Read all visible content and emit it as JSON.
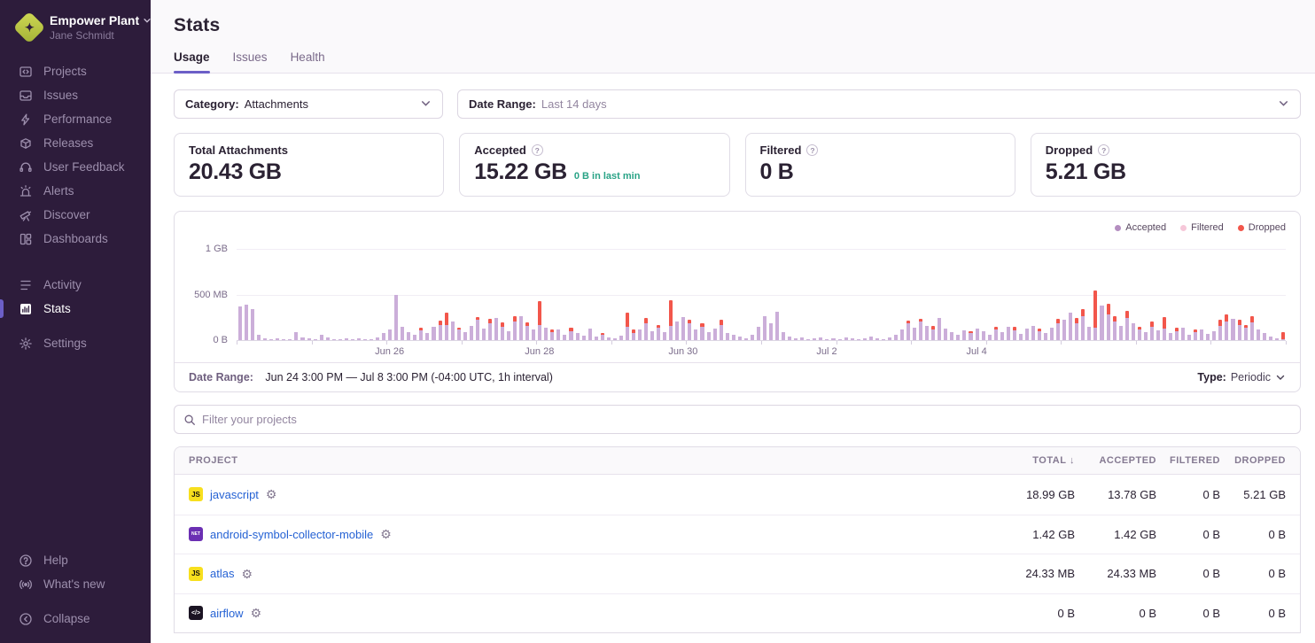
{
  "colors": {
    "accent": "#6c5fc7",
    "sidebar_bg": "#2d1c3b",
    "accepted": "#cbaed9",
    "filtered": "#f6c7d9",
    "dropped": "#f2564b",
    "link_blue": "#2562d4",
    "teal": "#29a386"
  },
  "sidebar": {
    "org_name": "Empower Plant",
    "user_name": "Jane Schmidt",
    "primary_items": [
      {
        "label": "Projects",
        "icon": "projects-icon"
      },
      {
        "label": "Issues",
        "icon": "issues-icon"
      },
      {
        "label": "Performance",
        "icon": "performance-icon"
      },
      {
        "label": "Releases",
        "icon": "releases-icon"
      },
      {
        "label": "User Feedback",
        "icon": "user-feedback-icon"
      },
      {
        "label": "Alerts",
        "icon": "alerts-icon"
      },
      {
        "label": "Discover",
        "icon": "discover-icon"
      },
      {
        "label": "Dashboards",
        "icon": "dashboards-icon"
      }
    ],
    "secondary_items": [
      {
        "label": "Activity",
        "icon": "activity-icon"
      },
      {
        "label": "Stats",
        "icon": "stats-icon",
        "active": true
      }
    ],
    "settings_items": [
      {
        "label": "Settings",
        "icon": "settings-icon"
      }
    ],
    "footer_items": [
      {
        "label": "Help",
        "icon": "help-icon"
      },
      {
        "label": "What's new",
        "icon": "whats-new-icon"
      }
    ],
    "collapse_items": [
      {
        "label": "Collapse",
        "icon": "collapse-icon"
      }
    ]
  },
  "header": {
    "title": "Stats",
    "tabs": [
      {
        "label": "Usage",
        "active": true
      },
      {
        "label": "Issues",
        "active": false
      },
      {
        "label": "Health",
        "active": false
      }
    ]
  },
  "filters": {
    "category_label": "Category:",
    "category_value": "Attachments",
    "date_range_label": "Date Range:",
    "date_range_value": "Last 14 days"
  },
  "summary_cards": [
    {
      "label": "Total Attachments",
      "value": "20.43 GB",
      "has_help": false,
      "sub_value": ""
    },
    {
      "label": "Accepted",
      "value": "15.22 GB",
      "has_help": true,
      "sub_value": "0 B in last min"
    },
    {
      "label": "Filtered",
      "value": "0 B",
      "has_help": true,
      "sub_value": ""
    },
    {
      "label": "Dropped",
      "value": "5.21 GB",
      "has_help": true,
      "sub_value": ""
    }
  ],
  "chart_data": {
    "type": "bar",
    "stacked": true,
    "unit": "MB",
    "y_axis": {
      "tick_labels": [
        "1 GB",
        "500 MB",
        "0 B"
      ],
      "gridlines_mb": [
        1000,
        500
      ],
      "ylim_mb": [
        0,
        1090
      ]
    },
    "x_axis": {
      "tick_labels": [
        "Jun 26",
        "Jun 28",
        "Jun 30",
        "Jul 2",
        "Jul 4"
      ]
    },
    "legend": [
      {
        "label": "Accepted",
        "color": "#b48ec0"
      },
      {
        "label": "Filtered",
        "color": "#f6c7d9"
      },
      {
        "label": "Dropped",
        "color": "#f2564b"
      }
    ],
    "series": [
      {
        "name": "Accepted",
        "values_mb": [
          370,
          390,
          340,
          60,
          15,
          10,
          20,
          8,
          12,
          90,
          30,
          15,
          10,
          60,
          25,
          12,
          8,
          15,
          10,
          20,
          12,
          8,
          25,
          80,
          120,
          500,
          150,
          90,
          60,
          110,
          80,
          150,
          170,
          170,
          200,
          120,
          90,
          160,
          220,
          130,
          180,
          240,
          150,
          100,
          200,
          260,
          160,
          120,
          170,
          140,
          90,
          120,
          60,
          100,
          80,
          50,
          130,
          40,
          60,
          30,
          20,
          50,
          150,
          80,
          120,
          180,
          100,
          140,
          90,
          160,
          200,
          250,
          180,
          120,
          150,
          90,
          130,
          170,
          80,
          60,
          40,
          20,
          60,
          150,
          260,
          180,
          310,
          90,
          40,
          20,
          30,
          10,
          15,
          25,
          8,
          20,
          12,
          30,
          15,
          10,
          20,
          40,
          15,
          10,
          30,
          60,
          120,
          180,
          140,
          200,
          160,
          120,
          240,
          130,
          90,
          60,
          110,
          80,
          130,
          100,
          60,
          120,
          90,
          150,
          110,
          70,
          130,
          160,
          100,
          80,
          140,
          180,
          220,
          300,
          180,
          260,
          150,
          140,
          380,
          280,
          200,
          160,
          240,
          180,
          120,
          90,
          150,
          110,
          130,
          80,
          100,
          140,
          60,
          90,
          120,
          70,
          100,
          160,
          200,
          230,
          170,
          140,
          190,
          120,
          80,
          40,
          20,
          10
        ]
      },
      {
        "name": "Dropped",
        "values_mb": [
          0,
          0,
          0,
          0,
          0,
          0,
          0,
          0,
          0,
          0,
          0,
          0,
          0,
          0,
          0,
          0,
          0,
          0,
          0,
          0,
          0,
          0,
          0,
          0,
          0,
          0,
          0,
          0,
          0,
          30,
          0,
          0,
          40,
          130,
          0,
          20,
          0,
          0,
          30,
          0,
          50,
          0,
          40,
          0,
          60,
          0,
          30,
          0,
          260,
          0,
          30,
          0,
          0,
          40,
          0,
          0,
          0,
          0,
          20,
          0,
          0,
          0,
          150,
          40,
          0,
          60,
          0,
          30,
          0,
          280,
          0,
          0,
          40,
          0,
          30,
          0,
          0,
          50,
          0,
          0,
          0,
          0,
          0,
          0,
          0,
          0,
          0,
          0,
          0,
          0,
          0,
          0,
          0,
          0,
          0,
          0,
          0,
          0,
          0,
          0,
          0,
          0,
          0,
          0,
          0,
          0,
          0,
          30,
          0,
          30,
          0,
          40,
          0,
          0,
          0,
          0,
          0,
          20,
          0,
          0,
          0,
          30,
          0,
          0,
          40,
          0,
          0,
          0,
          30,
          0,
          0,
          50,
          0,
          0,
          60,
          80,
          0,
          400,
          0,
          120,
          60,
          0,
          80,
          0,
          30,
          0,
          50,
          0,
          120,
          0,
          40,
          0,
          0,
          30,
          0,
          0,
          0,
          60,
          80,
          0,
          50,
          30,
          70,
          0,
          0,
          0,
          0,
          80
        ]
      },
      {
        "name": "Filtered",
        "values_mb": [],
        "total": "0 B"
      }
    ]
  },
  "chart_footer": {
    "date_range_label": "Date Range:",
    "date_range_value": "Jun 24 3:00 PM — Jul 8 3:00 PM (-04:00 UTC, 1h interval)",
    "type_label": "Type:",
    "type_value": "Periodic"
  },
  "project_filter": {
    "placeholder": "Filter your projects"
  },
  "projects_table": {
    "columns": [
      "PROJECT",
      "TOTAL",
      "ACCEPTED",
      "FILTERED",
      "DROPPED"
    ],
    "sorted_column": "TOTAL",
    "rows": [
      {
        "name": "javascript",
        "platform": "javascript",
        "total": "18.99 GB",
        "accepted": "13.78 GB",
        "filtered": "0 B",
        "dropped": "5.21 GB"
      },
      {
        "name": "android-symbol-collector-mobile",
        "platform": "dotnet",
        "total": "1.42 GB",
        "accepted": "1.42 GB",
        "filtered": "0 B",
        "dropped": "0 B"
      },
      {
        "name": "atlas",
        "platform": "javascript",
        "total": "24.33 MB",
        "accepted": "24.33 MB",
        "filtered": "0 B",
        "dropped": "0 B"
      },
      {
        "name": "airflow",
        "platform": "code",
        "total": "0 B",
        "accepted": "0 B",
        "filtered": "0 B",
        "dropped": "0 B"
      }
    ]
  }
}
